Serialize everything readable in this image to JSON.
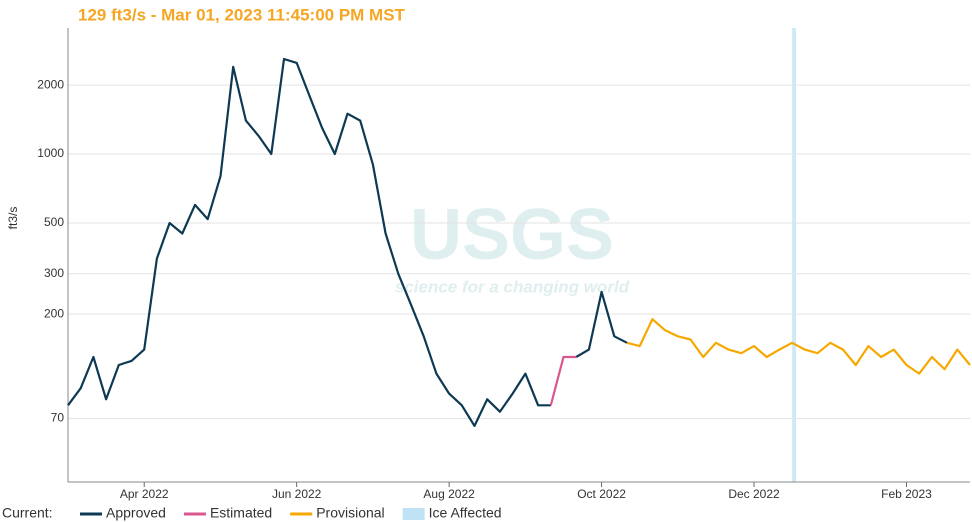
{
  "chart_data": {
    "type": "line",
    "title": "129 ft3/s - Mar 01, 2023 11:45:00 PM MST",
    "y_label": "ft3/s",
    "log_scale": true,
    "grid": true,
    "ylim": [
      37,
      3550
    ],
    "yticks": [
      70,
      200,
      300,
      500,
      1000,
      2000
    ],
    "watermark": {
      "logo": "USGS",
      "tagline": "science for a changing world"
    },
    "legend_prefix": "Current:",
    "categories": [
      null,
      null,
      null,
      null,
      null,
      null,
      "Apr 2022",
      null,
      null,
      null,
      null,
      null,
      null,
      null,
      null,
      null,
      null,
      null,
      "Jun 2022",
      null,
      null,
      null,
      null,
      null,
      null,
      null,
      null,
      null,
      null,
      null,
      "Aug 2022",
      null,
      null,
      null,
      null,
      null,
      null,
      null,
      null,
      null,
      null,
      null,
      "Oct 2022",
      null,
      null,
      null,
      null,
      null,
      null,
      null,
      null,
      null,
      null,
      null,
      "Dec 2022",
      null,
      null,
      null,
      null,
      null,
      null,
      null,
      null,
      null,
      null,
      null,
      "Feb 2023",
      null,
      null,
      null,
      null,
      null
    ],
    "series": [
      {
        "name": "Approved",
        "color": "#0d3a52",
        "values": [
          80,
          95,
          130,
          85,
          120,
          125,
          140,
          350,
          500,
          450,
          600,
          520,
          800,
          2400,
          1400,
          1200,
          1000,
          2600,
          2500,
          1800,
          1300,
          1000,
          1500,
          1400,
          900,
          450,
          300,
          220,
          160,
          110,
          90,
          80,
          65,
          85,
          75,
          90,
          110,
          80,
          80,
          null,
          130,
          140,
          250,
          160,
          150,
          null,
          null,
          null,
          null,
          null,
          null,
          null,
          null,
          null,
          null,
          null,
          null,
          null,
          null,
          null,
          null,
          null,
          null,
          null,
          null,
          null,
          null,
          null,
          null,
          null,
          null,
          null
        ]
      },
      {
        "name": "Estimated",
        "color": "#d9578e",
        "values": [
          null,
          null,
          null,
          null,
          null,
          null,
          null,
          null,
          null,
          null,
          null,
          null,
          null,
          null,
          null,
          null,
          null,
          null,
          null,
          null,
          null,
          null,
          null,
          null,
          null,
          null,
          null,
          null,
          null,
          null,
          null,
          null,
          null,
          null,
          null,
          null,
          null,
          null,
          80,
          130,
          130,
          null,
          null,
          null,
          null,
          null,
          null,
          null,
          null,
          null,
          null,
          null,
          null,
          null,
          null,
          null,
          null,
          null,
          null,
          null,
          null,
          null,
          null,
          null,
          null,
          null,
          null,
          null,
          null,
          null,
          null,
          null
        ]
      },
      {
        "name": "Provisional",
        "color": "#f7a800",
        "values": [
          null,
          null,
          null,
          null,
          null,
          null,
          null,
          null,
          null,
          null,
          null,
          null,
          null,
          null,
          null,
          null,
          null,
          null,
          null,
          null,
          null,
          null,
          null,
          null,
          null,
          null,
          null,
          null,
          null,
          null,
          null,
          null,
          null,
          null,
          null,
          null,
          null,
          null,
          null,
          null,
          null,
          null,
          null,
          null,
          150,
          145,
          190,
          170,
          160,
          155,
          130,
          150,
          140,
          135,
          145,
          130,
          140,
          150,
          140,
          135,
          150,
          140,
          120,
          145,
          130,
          140,
          120,
          110,
          130,
          115,
          140,
          120
        ]
      }
    ],
    "ice_affected": {
      "name": "Ice Affected",
      "color": "#bfe3f5",
      "x_range": [
        57,
        57.3
      ]
    }
  }
}
